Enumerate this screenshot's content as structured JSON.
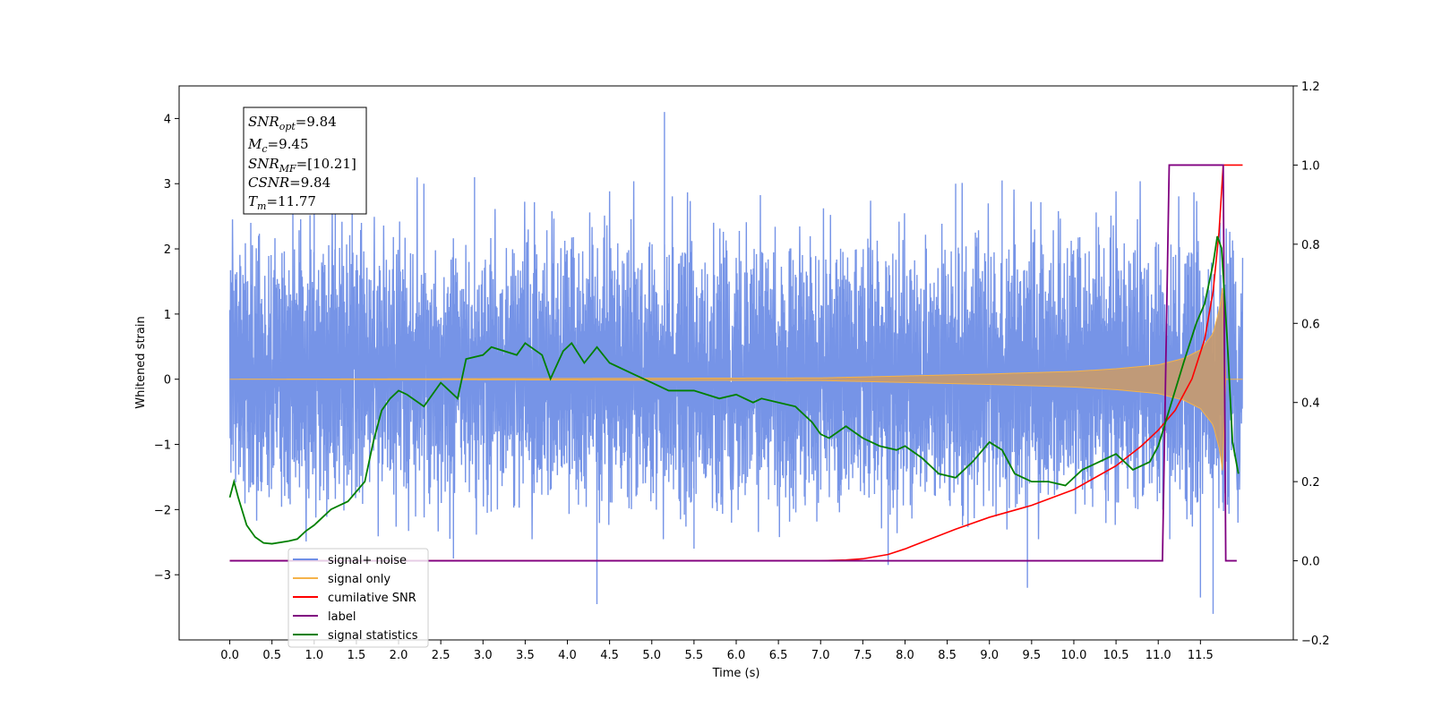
{
  "chart_data": {
    "type": "line",
    "xlabel": "Time (s)",
    "ylabel": "Whitened strain",
    "xlim": [
      -0.6,
      12.6
    ],
    "ylim": [
      -4,
      4.5
    ],
    "ylim_right": [
      -0.2,
      1.2
    ],
    "x_ticks": [
      "0.0",
      "0.5",
      "1.0",
      "1.5",
      "2.0",
      "2.5",
      "3.0",
      "3.5",
      "4.0",
      "4.5",
      "5.0",
      "5.5",
      "6.0",
      "6.5",
      "7.0",
      "7.5",
      "8.0",
      "8.5",
      "9.0",
      "9.5",
      "10.0",
      "10.5",
      "11.0",
      "11.5"
    ],
    "y_ticks_left": [
      "4",
      "3",
      "2",
      "1",
      "0",
      "−1",
      "−2",
      "−3"
    ],
    "y_ticks_right": [
      "1.2",
      "1.0",
      "0.8",
      "0.6",
      "0.4",
      "0.2",
      "0.0",
      "−0.2"
    ],
    "legend": {
      "position": "lower-left",
      "entries": [
        {
          "label": "signal+ noise",
          "color": "#6f8ee6"
        },
        {
          "label": "signal only",
          "color": "#f5b34a"
        },
        {
          "label": "cumilative SNR",
          "color": "#ff0000"
        },
        {
          "label": "label",
          "color": "#800080"
        },
        {
          "label": "signal statistics",
          "color": "#008000"
        }
      ]
    },
    "annotation": {
      "snr_opt": {
        "main": "SNR",
        "sub": "opt",
        "value": "=9.84"
      },
      "mc": {
        "main": "M",
        "sub": "c",
        "value": "=9.45"
      },
      "snr_mf": {
        "main": "SNR",
        "sub": "MF",
        "value": "=[10.21]"
      },
      "csnr": {
        "main": "CSNR",
        "value": "=9.84"
      },
      "tm": {
        "main": "T",
        "sub": "m",
        "value": "=11.77"
      }
    },
    "series": [
      {
        "name": "signal+ noise",
        "axis": "left",
        "color": "#6f8ee6",
        "x_range": [
          0,
          12
        ],
        "typical_envelope": [
          -1.6,
          2.2
        ],
        "spikes": [
          [
            5.15,
            4.1
          ],
          [
            1.0,
            3.3
          ],
          [
            1.25,
            3.1
          ],
          [
            1.45,
            3.2
          ],
          [
            2.3,
            3.0
          ],
          [
            2.9,
            3.1
          ],
          [
            8.6,
            3.0
          ],
          [
            9.15,
            3.05
          ],
          [
            4.35,
            -3.45
          ],
          [
            9.45,
            -3.2
          ],
          [
            11.65,
            -3.6
          ],
          [
            11.5,
            -3.35
          ],
          [
            7.8,
            -2.85
          ],
          [
            2.65,
            -2.75
          ],
          [
            5.5,
            -2.6
          ]
        ]
      },
      {
        "name": "signal only",
        "axis": "left",
        "color": "#f5b34a",
        "chirp_envelope": [
          [
            0,
            0.0
          ],
          [
            7.0,
            0.02
          ],
          [
            8.0,
            0.05
          ],
          [
            9.0,
            0.08
          ],
          [
            10.0,
            0.12
          ],
          [
            10.5,
            0.16
          ],
          [
            11.0,
            0.22
          ],
          [
            11.3,
            0.32
          ],
          [
            11.5,
            0.45
          ],
          [
            11.65,
            0.7
          ],
          [
            11.73,
            1.1
          ],
          [
            11.77,
            1.5
          ],
          [
            11.79,
            0.0
          ],
          [
            12.0,
            0.0
          ]
        ]
      },
      {
        "name": "cumilative SNR",
        "axis": "right",
        "color": "#ff0000",
        "points": [
          [
            0,
            0
          ],
          [
            7.0,
            0
          ],
          [
            7.3,
            0.002
          ],
          [
            7.5,
            0.005
          ],
          [
            7.8,
            0.016
          ],
          [
            8.0,
            0.03
          ],
          [
            8.3,
            0.055
          ],
          [
            8.6,
            0.08
          ],
          [
            9.0,
            0.11
          ],
          [
            9.5,
            0.14
          ],
          [
            10.0,
            0.18
          ],
          [
            10.5,
            0.24
          ],
          [
            10.8,
            0.29
          ],
          [
            11.0,
            0.33
          ],
          [
            11.2,
            0.38
          ],
          [
            11.4,
            0.46
          ],
          [
            11.55,
            0.56
          ],
          [
            11.65,
            0.68
          ],
          [
            11.72,
            0.83
          ],
          [
            11.77,
            1.0
          ],
          [
            12.0,
            1.0
          ]
        ]
      },
      {
        "name": "label",
        "axis": "right",
        "color": "#800080",
        "points": [
          [
            0,
            0
          ],
          [
            11.05,
            0
          ],
          [
            11.13,
            1
          ],
          [
            11.77,
            1
          ],
          [
            11.8,
            0
          ],
          [
            11.93,
            0
          ]
        ]
      },
      {
        "name": "signal statistics",
        "axis": "right",
        "color": "#008000",
        "points": [
          [
            0,
            0.16
          ],
          [
            0.05,
            0.2
          ],
          [
            0.1,
            0.16
          ],
          [
            0.2,
            0.09
          ],
          [
            0.3,
            0.06
          ],
          [
            0.4,
            0.045
          ],
          [
            0.5,
            0.043
          ],
          [
            0.7,
            0.05
          ],
          [
            0.8,
            0.055
          ],
          [
            0.9,
            0.075
          ],
          [
            1.0,
            0.09
          ],
          [
            1.1,
            0.11
          ],
          [
            1.2,
            0.13
          ],
          [
            1.4,
            0.15
          ],
          [
            1.6,
            0.2
          ],
          [
            1.7,
            0.3
          ],
          [
            1.8,
            0.38
          ],
          [
            1.9,
            0.41
          ],
          [
            2.0,
            0.43
          ],
          [
            2.1,
            0.42
          ],
          [
            2.3,
            0.39
          ],
          [
            2.5,
            0.45
          ],
          [
            2.7,
            0.41
          ],
          [
            2.8,
            0.51
          ],
          [
            3.0,
            0.52
          ],
          [
            3.1,
            0.54
          ],
          [
            3.4,
            0.52
          ],
          [
            3.5,
            0.55
          ],
          [
            3.7,
            0.52
          ],
          [
            3.8,
            0.46
          ],
          [
            3.95,
            0.53
          ],
          [
            4.05,
            0.55
          ],
          [
            4.2,
            0.5
          ],
          [
            4.35,
            0.54
          ],
          [
            4.5,
            0.5
          ],
          [
            4.8,
            0.47
          ],
          [
            5.0,
            0.45
          ],
          [
            5.2,
            0.43
          ],
          [
            5.5,
            0.43
          ],
          [
            5.8,
            0.41
          ],
          [
            6.0,
            0.42
          ],
          [
            6.2,
            0.4
          ],
          [
            6.3,
            0.41
          ],
          [
            6.5,
            0.4
          ],
          [
            6.7,
            0.39
          ],
          [
            6.9,
            0.35
          ],
          [
            7.0,
            0.32
          ],
          [
            7.1,
            0.31
          ],
          [
            7.3,
            0.34
          ],
          [
            7.5,
            0.31
          ],
          [
            7.7,
            0.29
          ],
          [
            7.9,
            0.28
          ],
          [
            8.0,
            0.29
          ],
          [
            8.2,
            0.26
          ],
          [
            8.4,
            0.22
          ],
          [
            8.6,
            0.21
          ],
          [
            8.8,
            0.25
          ],
          [
            9.0,
            0.3
          ],
          [
            9.15,
            0.28
          ],
          [
            9.3,
            0.22
          ],
          [
            9.5,
            0.2
          ],
          [
            9.7,
            0.2
          ],
          [
            9.9,
            0.19
          ],
          [
            10.1,
            0.23
          ],
          [
            10.3,
            0.25
          ],
          [
            10.5,
            0.27
          ],
          [
            10.7,
            0.23
          ],
          [
            10.9,
            0.25
          ],
          [
            11.0,
            0.29
          ],
          [
            11.1,
            0.36
          ],
          [
            11.3,
            0.5
          ],
          [
            11.45,
            0.6
          ],
          [
            11.55,
            0.65
          ],
          [
            11.65,
            0.75
          ],
          [
            11.7,
            0.82
          ],
          [
            11.75,
            0.79
          ],
          [
            11.82,
            0.55
          ],
          [
            11.88,
            0.3
          ],
          [
            11.95,
            0.22
          ]
        ]
      }
    ]
  }
}
